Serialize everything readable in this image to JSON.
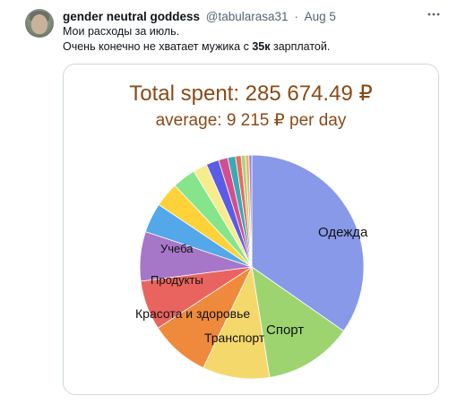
{
  "tweet": {
    "author_name": "gender neutral goddess",
    "author_handle": "@tabularasa31",
    "separator": "·",
    "date": "Aug 5",
    "more_icon": "more-horizontal-icon",
    "line1": "Мои расходы за июль.",
    "line2_before": "Очень конечно не хватает мужика с ",
    "line2_bold": "35к",
    "line2_after": " зарплатой."
  },
  "chart_data": {
    "type": "pie",
    "title": "Total spent:   285 674.49 ₽",
    "subtitle": "average:   9 215 ₽ per day",
    "slices": [
      {
        "label": "Одежда",
        "value": 34.0,
        "color": "#8899ea"
      },
      {
        "label": "Спорт",
        "value": 12.5,
        "color": "#9dd46f"
      },
      {
        "label": "Транспорт",
        "value": 9.5,
        "color": "#f5d86b"
      },
      {
        "label": "Красота и здоровье",
        "value": 8.5,
        "color": "#ef8a3c"
      },
      {
        "label": "Продукты",
        "value": 7.0,
        "color": "#e9645f"
      },
      {
        "label": "Учеба",
        "value": 7.0,
        "color": "#a677c9"
      },
      {
        "label": "",
        "value": 4.2,
        "color": "#54a8ea"
      },
      {
        "label": "",
        "value": 3.5,
        "color": "#ffd23a"
      },
      {
        "label": "",
        "value": 3.3,
        "color": "#86e58a"
      },
      {
        "label": "",
        "value": 2.0,
        "color": "#f7ec8c"
      },
      {
        "label": "",
        "value": 1.8,
        "color": "#5b5ce5"
      },
      {
        "label": "",
        "value": 1.3,
        "color": "#d24f8f"
      },
      {
        "label": "",
        "value": 1.1,
        "color": "#3aa9b5"
      },
      {
        "label": "",
        "value": 0.8,
        "color": "#e86a5e"
      },
      {
        "label": "",
        "value": 0.6,
        "color": "#a7d67a"
      },
      {
        "label": "",
        "value": 0.5,
        "color": "#f1b36e"
      },
      {
        "label": "",
        "value": 0.4,
        "color": "#9a84d6"
      }
    ]
  }
}
